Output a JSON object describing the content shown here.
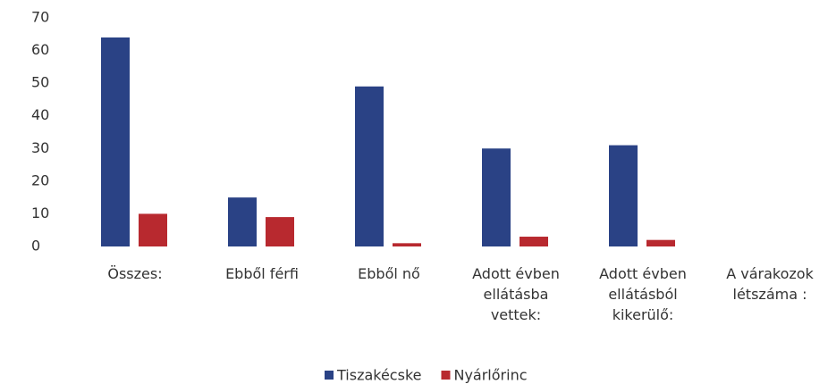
{
  "chart_data": {
    "type": "bar",
    "categories": [
      "Összes:",
      "Ebből férfi",
      "Ebből nő",
      "Adott évben ellátásba vettek:",
      "Adott évben ellátásból kikerülő:",
      "A várakozok létszáma :"
    ],
    "series": [
      {
        "name": "Tiszakécske",
        "color": "#2a4285",
        "values": [
          64,
          15,
          49,
          30,
          31,
          null
        ]
      },
      {
        "name": "Nyárlőrinc",
        "color": "#b8292f",
        "values": [
          10,
          9,
          1,
          3,
          2,
          null
        ]
      }
    ],
    "ylim": [
      0,
      70
    ],
    "yticks": [
      0,
      10,
      20,
      30,
      40,
      50,
      60,
      70
    ],
    "grid": false,
    "legend": "bottom"
  }
}
